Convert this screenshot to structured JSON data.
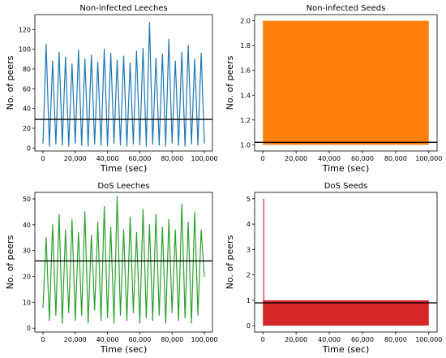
{
  "chart_data": [
    {
      "type": "line",
      "title": "Non-infected Leeches",
      "xlabel": "Time (sec)",
      "ylabel": "No. of peers",
      "xlim": [
        -5000,
        105000
      ],
      "ylim": [
        -3,
        135
      ],
      "xticks": [
        0,
        20000,
        40000,
        60000,
        80000,
        100000
      ],
      "xtick_labels": [
        "0",
        "20,000",
        "40,000",
        "60,000",
        "80,000",
        "100,000"
      ],
      "yticks": [
        0,
        20,
        40,
        60,
        80,
        100,
        120
      ],
      "ytick_labels": [
        "0",
        "20",
        "40",
        "60",
        "80",
        "100",
        "120"
      ],
      "color": "#1f77b4",
      "mean_line": 29,
      "series": [
        {
          "x": [
            0,
            2000,
            4000,
            6000,
            8000,
            10000,
            12000,
            14000,
            16000,
            18000,
            20000,
            22000,
            24000,
            26000,
            28000,
            30000,
            32000,
            34000,
            36000,
            38000,
            40000,
            42000,
            44000,
            46000,
            48000,
            50000,
            52000,
            54000,
            56000,
            58000,
            60000,
            62000,
            64000,
            66000,
            68000,
            70000,
            72000,
            74000,
            76000,
            78000,
            80000,
            82000,
            84000,
            86000,
            88000,
            90000,
            92000,
            94000,
            96000,
            98000,
            100000
          ],
          "y": [
            5,
            105,
            2,
            88,
            4,
            97,
            3,
            92,
            2,
            85,
            5,
            99,
            3,
            90,
            2,
            94,
            4,
            87,
            3,
            100,
            2,
            96,
            5,
            89,
            3,
            93,
            2,
            86,
            4,
            98,
            3,
            101,
            2,
            127,
            4,
            91,
            3,
            95,
            2,
            110,
            5,
            88,
            3,
            97,
            2,
            104,
            4,
            90,
            3,
            96,
            5
          ]
        }
      ]
    },
    {
      "type": "area",
      "title": "Non-infected Seeds",
      "xlabel": "Time (sec)",
      "ylabel": "No. of peers",
      "xlim": [
        -5000,
        105000
      ],
      "ylim": [
        0.95,
        2.05
      ],
      "xticks": [
        0,
        20000,
        40000,
        60000,
        80000,
        100000
      ],
      "xtick_labels": [
        "0",
        "20,000",
        "40,000",
        "60,000",
        "80,000",
        "100,000"
      ],
      "yticks": [
        1.0,
        1.2,
        1.4,
        1.6,
        1.8,
        2.0
      ],
      "ytick_labels": [
        "1.0",
        "1.2",
        "1.4",
        "1.6",
        "1.8",
        "2.0"
      ],
      "color": "#ff7f0e",
      "mean_line": 1.02,
      "fill_range": {
        "x": [
          0,
          100000
        ],
        "y": [
          1.0,
          2.0
        ]
      }
    },
    {
      "type": "line",
      "title": "DoS Leeches",
      "xlabel": "Time (sec)",
      "ylabel": "No. of peers",
      "xlim": [
        -5000,
        105000
      ],
      "ylim": [
        -1.5,
        52.5
      ],
      "xticks": [
        0,
        20000,
        40000,
        60000,
        80000,
        100000
      ],
      "xtick_labels": [
        "0",
        "20,000",
        "40,000",
        "60,000",
        "80,000",
        "100,000"
      ],
      "yticks": [
        0,
        10,
        20,
        30,
        40,
        50
      ],
      "ytick_labels": [
        "0",
        "10",
        "20",
        "30",
        "40",
        "50"
      ],
      "color": "#2ca02c",
      "mean_line": 26,
      "series": [
        {
          "x": [
            0,
            2000,
            4000,
            6000,
            8000,
            10000,
            12000,
            14000,
            16000,
            18000,
            20000,
            22000,
            24000,
            26000,
            28000,
            30000,
            32000,
            34000,
            36000,
            38000,
            40000,
            42000,
            44000,
            46000,
            48000,
            50000,
            52000,
            54000,
            56000,
            58000,
            60000,
            62000,
            64000,
            66000,
            68000,
            70000,
            72000,
            74000,
            76000,
            78000,
            80000,
            82000,
            84000,
            86000,
            88000,
            90000,
            92000,
            94000,
            96000,
            98000,
            100000
          ],
          "y": [
            8,
            35,
            3,
            40,
            5,
            44,
            2,
            38,
            6,
            42,
            3,
            37,
            5,
            45,
            2,
            36,
            7,
            41,
            3,
            47,
            4,
            39,
            2,
            51,
            5,
            38,
            3,
            43,
            6,
            37,
            2,
            46,
            4,
            40,
            3,
            44,
            5,
            39,
            2,
            42,
            6,
            38,
            3,
            48,
            4,
            41,
            2,
            45,
            5,
            38,
            20
          ]
        }
      ]
    },
    {
      "type": "area",
      "title": "DoS Seeds",
      "xlabel": "Time (sec)",
      "ylabel": "No. of peers",
      "xlim": [
        -5000,
        105000
      ],
      "ylim": [
        -0.25,
        5.25
      ],
      "xticks": [
        0,
        20000,
        40000,
        60000,
        80000,
        100000
      ],
      "xtick_labels": [
        "0",
        "20,000",
        "40,000",
        "60,000",
        "80,000",
        "100,000"
      ],
      "yticks": [
        0,
        1,
        2,
        3,
        4,
        5
      ],
      "ytick_labels": [
        "0",
        "1",
        "2",
        "3",
        "4",
        "5"
      ],
      "color": "#d62728",
      "mean_line": 0.9,
      "spike": {
        "x": 0,
        "y": 5
      },
      "fill_range": {
        "x": [
          0,
          100000
        ],
        "y": [
          0,
          1
        ]
      }
    }
  ]
}
